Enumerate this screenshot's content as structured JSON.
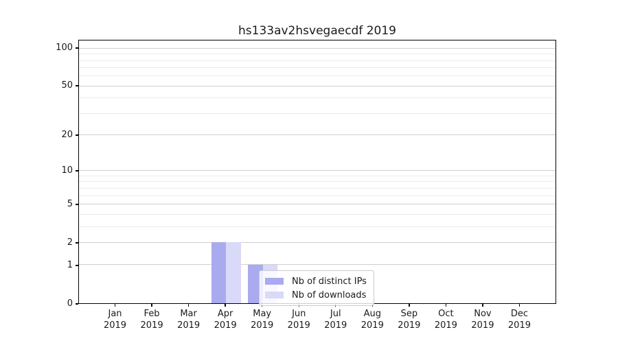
{
  "title": "hs133av2hsvegaecdf 2019",
  "chart_data": {
    "type": "bar",
    "title": "hs133av2hsvegaecdf 2019",
    "categories": [
      "Jan 2019",
      "Feb 2019",
      "Mar 2019",
      "Apr 2019",
      "May 2019",
      "Jun 2019",
      "Jul 2019",
      "Aug 2019",
      "Sep 2019",
      "Oct 2019",
      "Nov 2019",
      "Dec 2019"
    ],
    "series": [
      {
        "name": "Nb of distinct IPs",
        "color": "#aaaaf0",
        "values": [
          0,
          0,
          0,
          2,
          1,
          0,
          0,
          0,
          0,
          0,
          0,
          0
        ]
      },
      {
        "name": "Nb of downloads",
        "color": "#d9d9f8",
        "values": [
          0,
          0,
          0,
          2,
          1,
          0,
          0,
          0,
          0,
          0,
          0,
          0
        ]
      }
    ],
    "xlabel": "",
    "ylabel": "",
    "yscale": "log1p",
    "ylim": [
      0,
      116
    ],
    "y_major_ticks": [
      0,
      1,
      2,
      5,
      10,
      20,
      50,
      100
    ],
    "y_minor_gridlines": [
      3,
      4,
      6,
      7,
      8,
      9,
      30,
      40,
      60,
      70,
      80,
      90
    ],
    "grid": "horizontal, major and minor gridlines",
    "legend_position": "inside plot, lower center-right"
  },
  "legend": {
    "items": [
      {
        "label": "Nb of distinct IPs",
        "color": "#aaaaf0"
      },
      {
        "label": "Nb of downloads",
        "color": "#d9d9f8"
      }
    ]
  },
  "colors": {
    "background": "#ffffff",
    "axis": "#000000",
    "grid_major": "#cfcfcf",
    "grid_minor": "#ececec",
    "text": "#1a1a1a",
    "legend_border": "#cccccc"
  }
}
